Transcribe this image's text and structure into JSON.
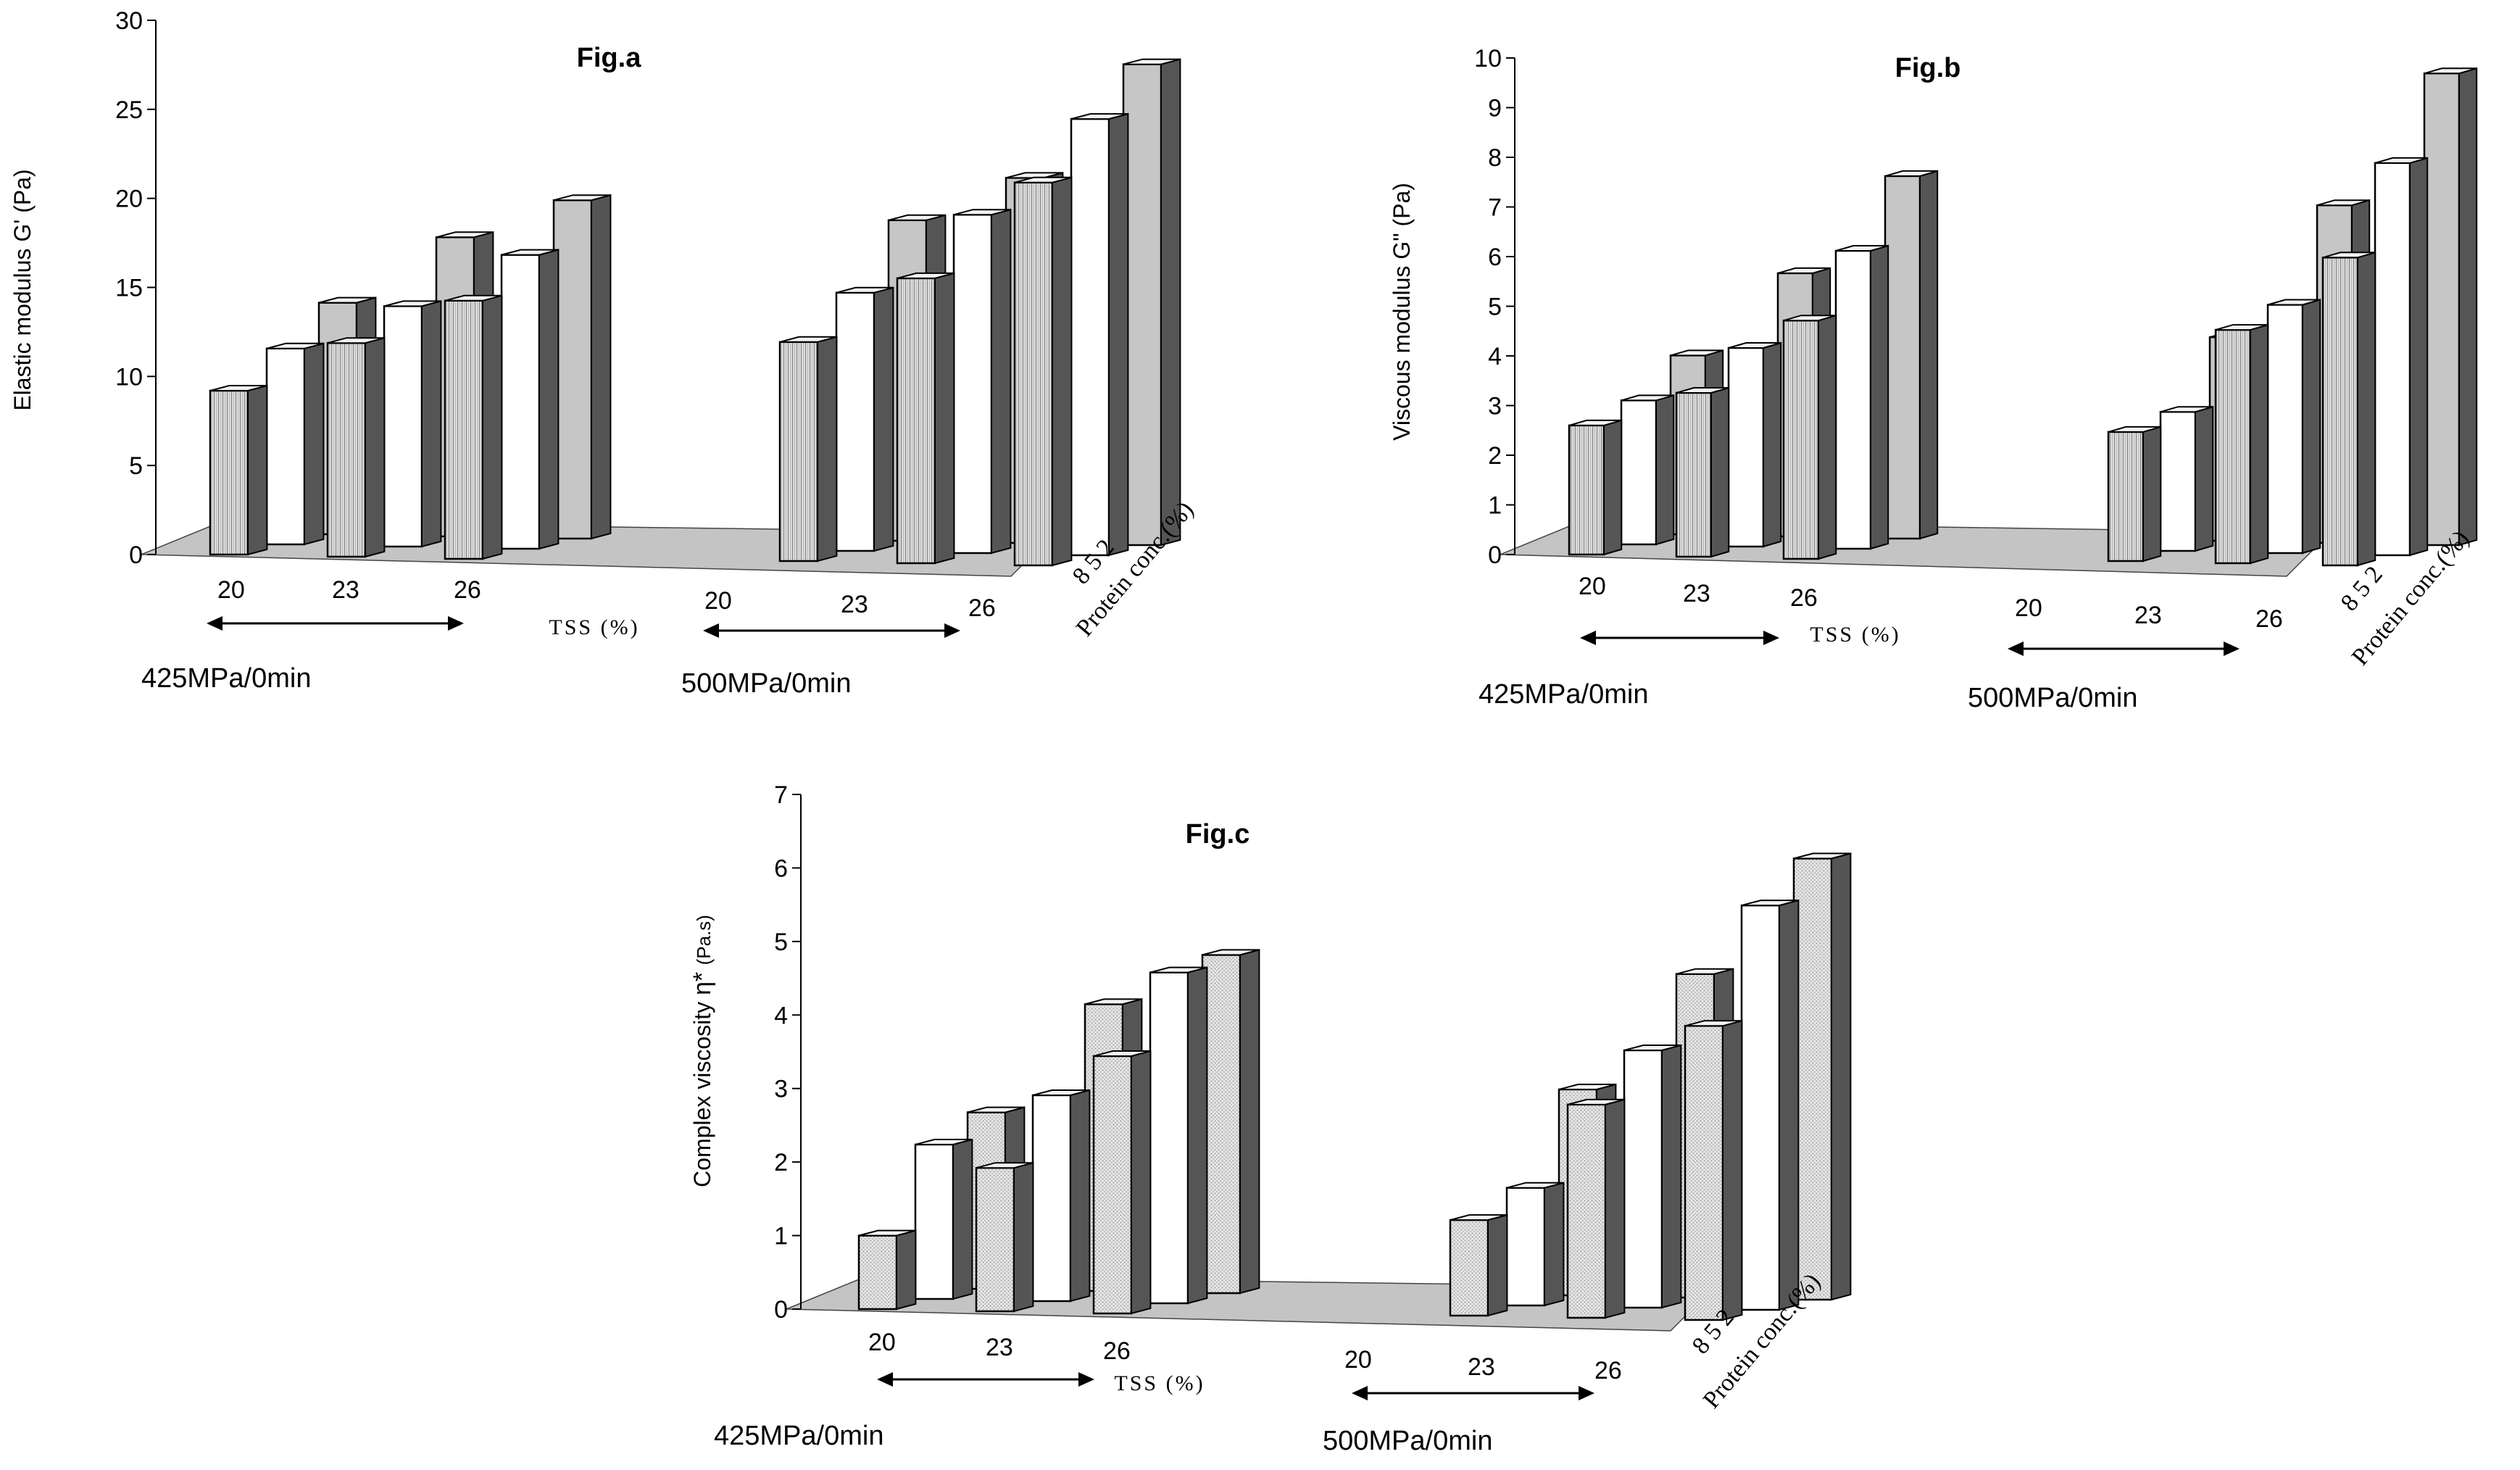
{
  "charts": [
    {
      "id": "a",
      "chart_data": {
        "type": "bar",
        "subtype": "3d-clustered",
        "title": "Fig.a",
        "ylabel": "Elastic modulus G' (Pa)",
        "xlabel": "TSS (%)",
        "zlabel": "Protein conc.(%)",
        "z_categories": [
          "8",
          "5",
          "2"
        ],
        "ylim": [
          0,
          30
        ],
        "yticks": [
          0,
          5,
          10,
          15,
          20,
          25,
          30
        ],
        "groups": [
          {
            "label": "425MPa/0min",
            "categories": [
              "20",
              "23",
              "26"
            ]
          },
          {
            "label": "500MPa/0min",
            "categories": [
              "20",
              "23",
              "26"
            ]
          }
        ],
        "series": [
          {
            "name": "8",
            "values": [
              9.2,
              12.0,
              14.5,
              12.3,
              16.0,
              21.5
            ]
          },
          {
            "name": "5",
            "values": [
              11.0,
              13.5,
              16.5,
              14.5,
              19.0,
              24.5
            ]
          },
          {
            "name": "2",
            "values": [
              13.0,
              16.8,
              19.0,
              18.0,
              20.5,
              27.0
            ]
          }
        ]
      }
    },
    {
      "id": "b",
      "chart_data": {
        "type": "bar",
        "subtype": "3d-clustered",
        "title": "Fig.b",
        "ylabel": "Viscous modulus G\" (Pa)",
        "xlabel": "TSS (%)",
        "zlabel": "Protein conc.(%)",
        "z_categories": [
          "8",
          "5",
          "2"
        ],
        "ylim": [
          0,
          10
        ],
        "yticks": [
          0,
          1,
          2,
          3,
          4,
          5,
          6,
          7,
          8,
          9,
          10
        ],
        "groups": [
          {
            "label": "425MPa/0min",
            "categories": [
              "20",
              "23",
              "26"
            ]
          },
          {
            "label": "500MPa/0min",
            "categories": [
              "20",
              "23",
              "26"
            ]
          }
        ],
        "series": [
          {
            "name": "8",
            "values": [
              2.6,
              3.3,
              4.8,
              2.6,
              4.7,
              6.2
            ]
          },
          {
            "name": "5",
            "values": [
              2.9,
              4.0,
              6.0,
              2.8,
              5.0,
              7.9
            ]
          },
          {
            "name": "2",
            "values": [
              3.6,
              5.3,
              7.3,
              4.1,
              6.8,
              9.5
            ]
          }
        ]
      }
    },
    {
      "id": "c",
      "chart_data": {
        "type": "bar",
        "subtype": "3d-clustered",
        "title": "Fig.c",
        "ylabel": "Complex viscosity   η* (Pa.s)",
        "ylabel_main": "Complex viscosity",
        "ylabel_symbol": "η*",
        "ylabel_unit": "(Pa.s)",
        "xlabel": "TSS (%)",
        "zlabel": "Protein conc.(%)",
        "z_categories": [
          "8",
          "5",
          "2"
        ],
        "ylim": [
          0,
          7
        ],
        "yticks": [
          0,
          1,
          2,
          3,
          4,
          5,
          6,
          7
        ],
        "groups": [
          {
            "label": "425MPa/0min",
            "categories": [
              "20",
              "23",
              "26"
            ]
          },
          {
            "label": "500MPa/0min",
            "categories": [
              "20",
              "23",
              "26"
            ]
          }
        ],
        "series": [
          {
            "name": "8",
            "values": [
              1.0,
              1.95,
              3.5,
              1.3,
              2.9,
              4.0
            ]
          },
          {
            "name": "5",
            "values": [
              2.1,
              2.8,
              4.5,
              1.6,
              3.5,
              5.5
            ]
          },
          {
            "name": "2",
            "values": [
              2.4,
              3.9,
              4.6,
              2.8,
              4.4,
              6.0
            ]
          }
        ]
      }
    }
  ],
  "chart_data": [
    {
      "ref": "a"
    },
    {
      "ref": "b"
    },
    {
      "ref": "c"
    }
  ],
  "colors": {
    "floor": "#c4c4c4",
    "front_series_face": "#e3e3e3",
    "mid_series_face": "#ffffff",
    "back_series_face": "#c8c8c8",
    "side_dark": "#555555",
    "top_light": "#f2f2f2",
    "stroke": "#000000"
  }
}
